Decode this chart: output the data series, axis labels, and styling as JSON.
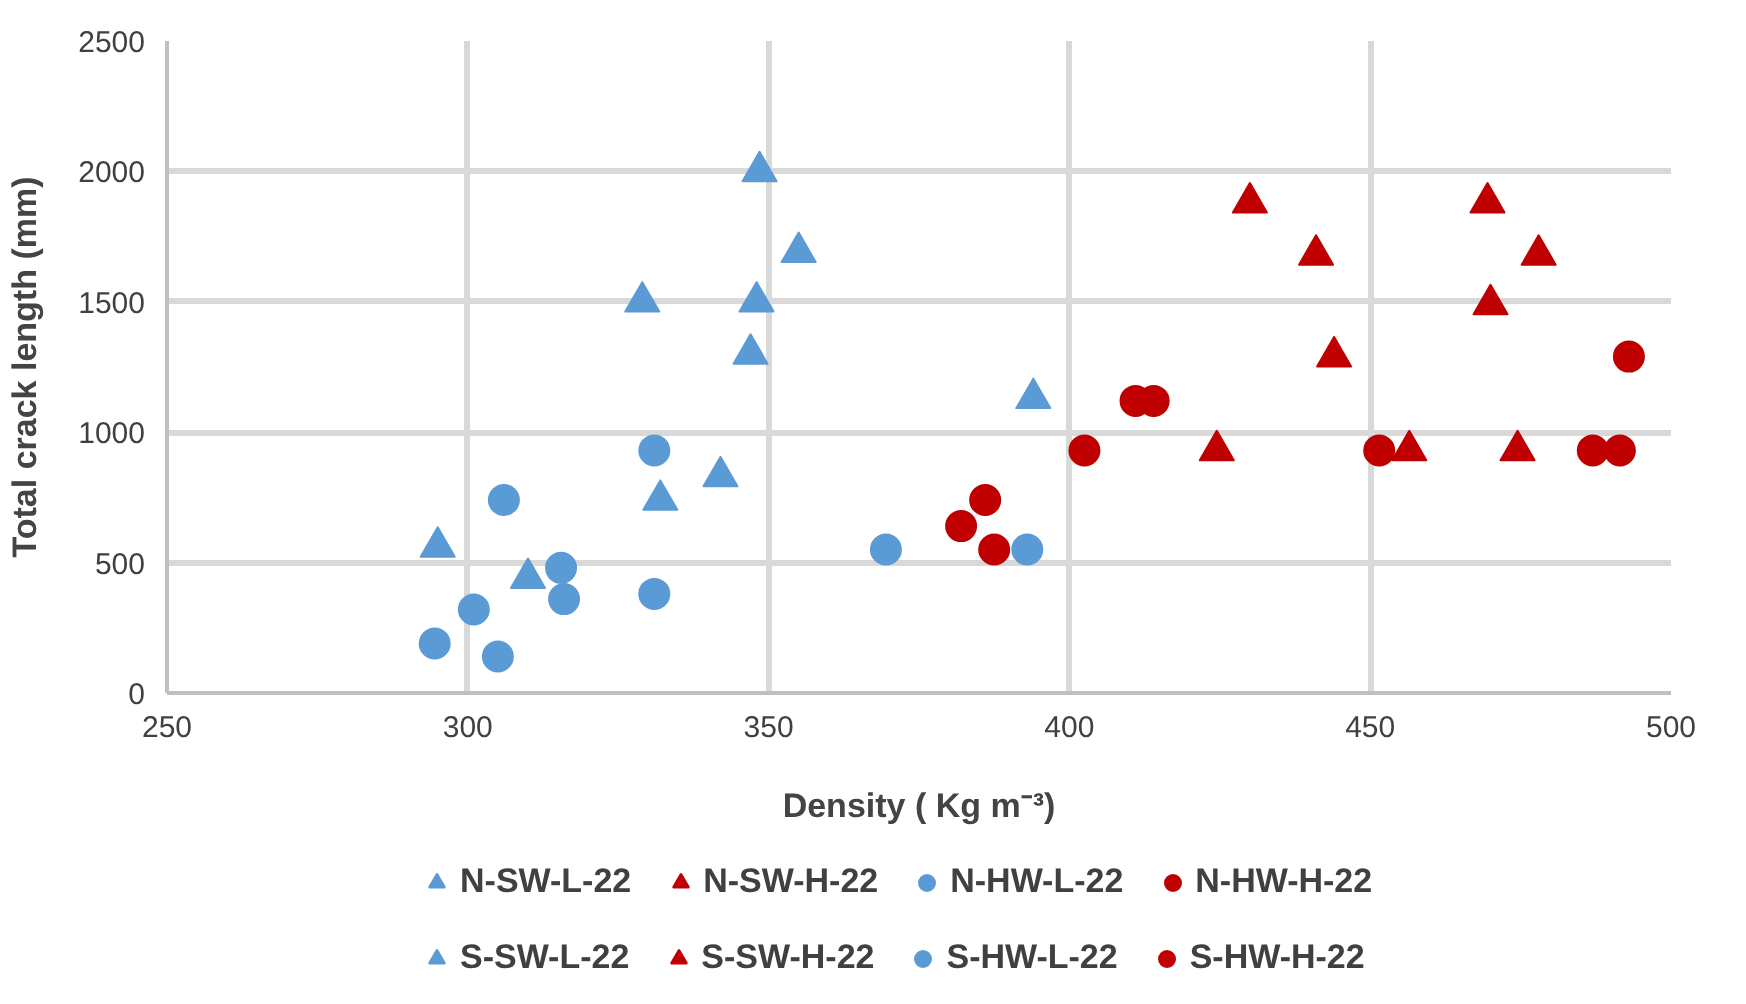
{
  "chart_data": {
    "type": "scatter",
    "xlabel": "Density ( Kg m⁻³)",
    "ylabel": "Total crack length (mm)",
    "xlim": [
      250,
      500
    ],
    "xticks": [
      250,
      300,
      350,
      400,
      450,
      500
    ],
    "ylim": [
      0,
      2500
    ],
    "yticks": [
      0,
      500,
      1000,
      1500,
      2000,
      2500
    ],
    "grid": true,
    "legend": "bottom",
    "series": [
      {
        "name": "N-SW-L-22",
        "color": "#5b9bd5",
        "marker": "triangle",
        "x": [
          295,
          310,
          332,
          342,
          347
        ],
        "values": [
          560,
          440,
          740,
          830,
          1300
        ]
      },
      {
        "name": "N-SW-H-22",
        "color": "#c00000",
        "marker": "triangle",
        "x": [
          424.5,
          444,
          470,
          478,
          474.5
        ],
        "values": [
          930,
          1290,
          1490,
          1680,
          930
        ]
      },
      {
        "name": "N-HW-L-22",
        "color": "#5b9bd5",
        "marker": "circle",
        "x": [
          294.5,
          301,
          315.5,
          316,
          331
        ],
        "values": [
          190,
          320,
          480,
          360,
          380
        ]
      },
      {
        "name": "N-HW-H-22",
        "color": "#c00000",
        "marker": "circle",
        "x": [
          386,
          382,
          387.5,
          451.5
        ],
        "values": [
          740,
          640,
          550,
          930
        ]
      },
      {
        "name": "S-SW-L-22",
        "color": "#5b9bd5",
        "marker": "triangle",
        "x": [
          329,
          348,
          348.5,
          355,
          394
        ],
        "values": [
          1500,
          1500,
          2000,
          1690,
          1130
        ]
      },
      {
        "name": "S-SW-H-22",
        "color": "#c00000",
        "marker": "triangle",
        "x": [
          430,
          441,
          456.5,
          469.5
        ],
        "values": [
          1880,
          1680,
          930,
          1880
        ]
      },
      {
        "name": "S-HW-L-22",
        "color": "#5b9bd5",
        "marker": "circle",
        "x": [
          306,
          305,
          331,
          369.5,
          393
        ],
        "values": [
          740,
          140,
          930,
          550,
          550
        ]
      },
      {
        "name": "S-HW-H-22",
        "color": "#c00000",
        "marker": "circle",
        "x": [
          402.5,
          411,
          414,
          493,
          487,
          491.5
        ],
        "values": [
          930,
          1120,
          1120,
          1290,
          930,
          930
        ]
      }
    ]
  }
}
